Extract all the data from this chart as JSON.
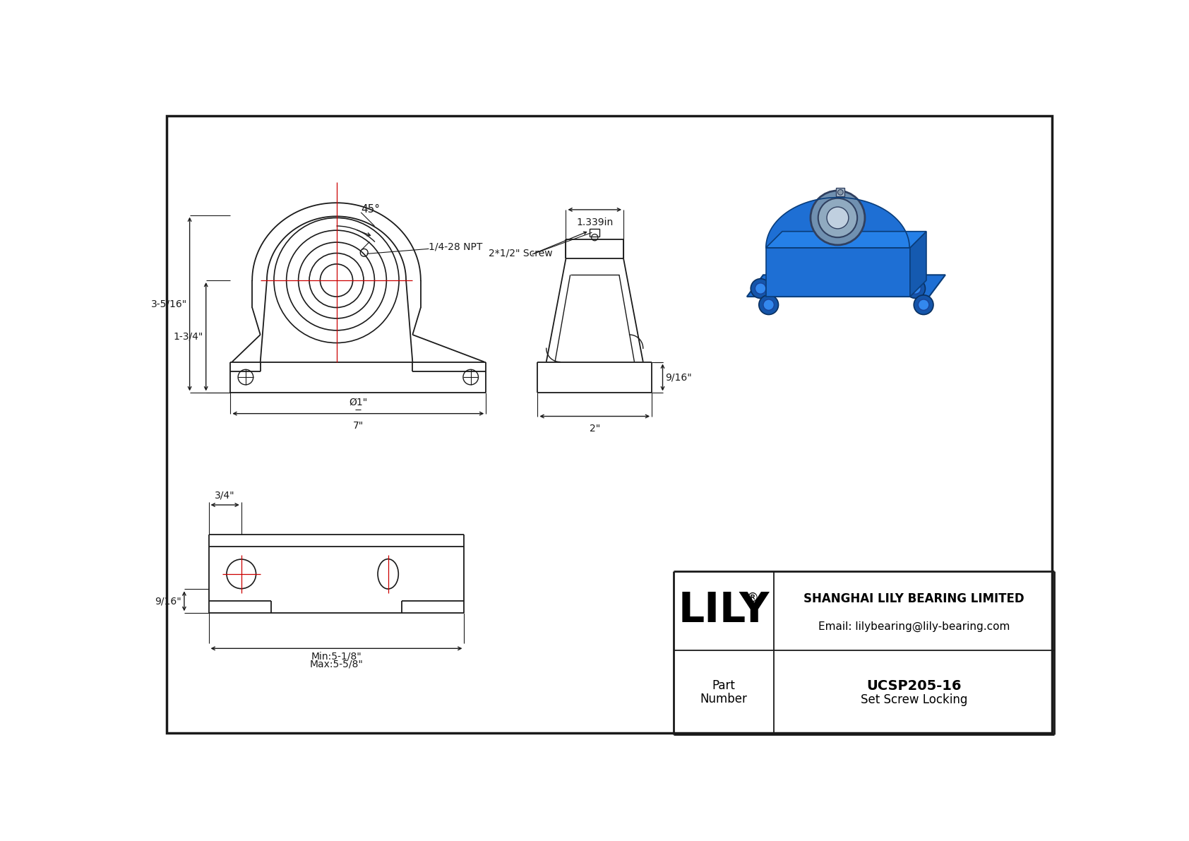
{
  "bg_color": "#ffffff",
  "line_color": "#1a1a1a",
  "red_color": "#cc0000",
  "title_company": "SHANGHAI LILY BEARING LIMITED",
  "title_email": "Email: lilybearing@lily-bearing.com",
  "part_number": "UCSP205-16",
  "part_type": "Set Screw Locking",
  "dim_3516": "3-5/16\"",
  "dim_134": "1-3/4\"",
  "dim_7": "7\"",
  "dim_dia1": "Ø1\"",
  "dim_45": "45°",
  "dim_npt": "1/4-28 NPT",
  "dim_screw": "2*1/2\" Screw",
  "dim_1339": "1.339in",
  "dim_916_side": "9/16\"",
  "dim_2": "2\"",
  "dim_34": "3/4\"",
  "dim_916_bot": "9/16\"",
  "dim_min": "Min:5-1/8\"",
  "dim_max": "Max:5-5/8\""
}
